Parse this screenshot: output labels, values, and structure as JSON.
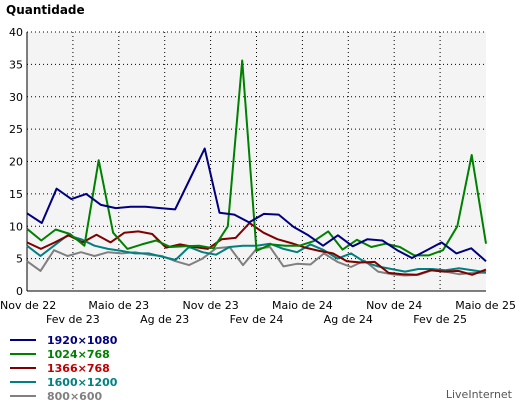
{
  "chart_data": {
    "type": "line",
    "title": "Quantidade",
    "ylim": [
      0,
      40
    ],
    "y_ticks": [
      "0",
      "5",
      "10",
      "15",
      "20",
      "25",
      "30",
      "35",
      "40"
    ],
    "x_ticks_row1": [
      "Nov de 22",
      "Maio de 23",
      "Nov de 23",
      "Maio de 24",
      "Nov de 24",
      "Maio de 25"
    ],
    "x_ticks_row2": [
      "Fev de 23",
      "Ag de 23",
      "Fev de 24",
      "Ag de 24",
      "Fev de 25"
    ],
    "grid": true,
    "legend_position": "bottom-left",
    "points": 39,
    "series": [
      {
        "name": "1920×1080",
        "color": "#000080",
        "label_color": "#000080",
        "values": [
          12,
          10.5,
          15.8,
          14.2,
          15,
          13.3,
          12.8,
          13,
          13,
          12.8,
          12.6,
          17.3,
          22,
          12.1,
          11.8,
          10.6,
          11.9,
          11.8,
          9.9,
          8.6,
          7,
          8.6,
          6.9,
          8,
          7.8,
          6.3,
          5.1,
          6.3,
          7.5,
          5.8,
          6.6,
          4.6
        ]
      },
      {
        "name": "1024×768",
        "color": "#008000",
        "label_color": "#008000",
        "values": [
          9.6,
          7.8,
          9.5,
          8.8,
          7,
          20.2,
          9,
          6.5,
          7.2,
          7.8,
          6.8,
          6.9,
          7,
          6.6,
          10,
          35.6,
          6.2,
          7.2,
          7,
          7,
          7.7,
          9.2,
          6.4,
          7.9,
          6.8,
          7.3,
          6.8,
          5.5,
          5.5,
          6.3,
          10,
          21,
          7.3
        ]
      },
      {
        "name": "1366×768",
        "color": "#800000",
        "label_color": "#c00000",
        "values": [
          7.5,
          6.5,
          7.5,
          8.6,
          7.5,
          8.7,
          7.5,
          9,
          9.2,
          8.8,
          6.7,
          7.2,
          6.8,
          6.5,
          8,
          8.2,
          10.5,
          9,
          8,
          7.4,
          6.7,
          6.2,
          5.8,
          4.6,
          4.4,
          4.5,
          2.8,
          2.6,
          2.5,
          3.2,
          3,
          3.1,
          2.5,
          3.3
        ]
      },
      {
        "name": "1600×1200",
        "color": "#008080",
        "label_color": "#008080",
        "values": [
          7,
          5.4,
          7,
          8.6,
          8,
          7,
          6.5,
          6.2,
          5.8,
          5.8,
          5.3,
          4.8,
          6.8,
          6,
          5.6,
          6.8,
          7,
          7,
          7.3,
          6.5,
          6,
          7.2,
          6.3,
          5,
          5.8,
          4.5,
          3.8,
          3.4,
          3,
          3.4,
          3.4,
          3.2,
          3.5,
          3.2,
          2.9
        ]
      },
      {
        "name": "800×600",
        "color": "#808080",
        "label_color": "#808080",
        "values": [
          4.6,
          3.1,
          6.3,
          5.4,
          6,
          5.4,
          6,
          5.8,
          6,
          5.6,
          5.4,
          4.6,
          4,
          5,
          6.6,
          6.8,
          4,
          6.5,
          6.8,
          3.8,
          4.2,
          4.1,
          5.8,
          4.5,
          3.7,
          4.7,
          3,
          2.6,
          2.4,
          2.5,
          3.2,
          3,
          2.6,
          2.8,
          2.8
        ]
      }
    ]
  },
  "credit": "LiveInternet"
}
